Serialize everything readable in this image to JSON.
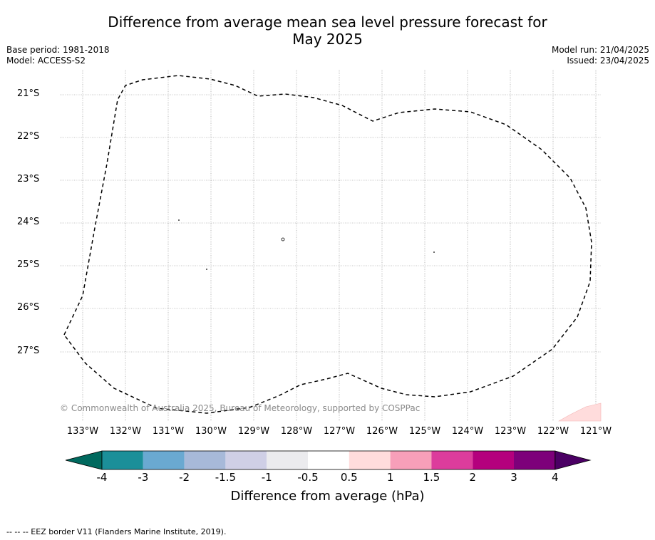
{
  "title_line1": "Difference from average mean sea level pressure forecast for",
  "title_line2": "May 2025",
  "meta_left": {
    "base_period": "Base period: 1981-2018",
    "model": "Model: ACCESS-S2"
  },
  "meta_right": {
    "model_run": "Model run: 21/04/2025",
    "issued": "Issued: 23/04/2025"
  },
  "lat_labels": [
    "21°S",
    "22°S",
    "23°S",
    "24°S",
    "25°S",
    "26°S",
    "27°S"
  ],
  "lon_labels": [
    "133°W",
    "132°W",
    "131°W",
    "130°W",
    "129°W",
    "128°W",
    "127°W",
    "126°W",
    "125°W",
    "124°W",
    "123°W",
    "122°W",
    "121°W"
  ],
  "copyright": "© Commonwealth of Australia 2025, Bureau of Meteorology, supported by COSPPac",
  "colorbar": {
    "ticks": [
      "-4",
      "-3",
      "-2",
      "-1.5",
      "-1",
      "-0.5",
      "0.5",
      "1",
      "1.5",
      "2",
      "3",
      "4"
    ],
    "colors": [
      "#00695e",
      "#1b8f99",
      "#6aa9d1",
      "#a7b9d9",
      "#cfcfe6",
      "#ebebee",
      "#ffffff",
      "#ffdcdc",
      "#f79fb9",
      "#dc3c9c",
      "#b4007d",
      "#7d007a",
      "#4b0064"
    ],
    "label": "Difference from average (hPa)"
  },
  "footer": "--  --  -- EEZ border V11 (Flanders Marine Institute, 2019).",
  "chart_data": {
    "type": "map",
    "title": "Difference from average mean sea level pressure forecast for May 2025",
    "lat_range": [
      "20.4°S",
      "28.6°S"
    ],
    "lon_range": [
      "133.5°W",
      "121.1°W"
    ],
    "grid": true,
    "shaded_region": {
      "category": "0.5 to 1",
      "location": "south-east corner"
    },
    "colors": {
      "eez_border": "#000000",
      "gridline": "#8a8a8a",
      "positive_anomaly": "#ffdcdc"
    }
  }
}
